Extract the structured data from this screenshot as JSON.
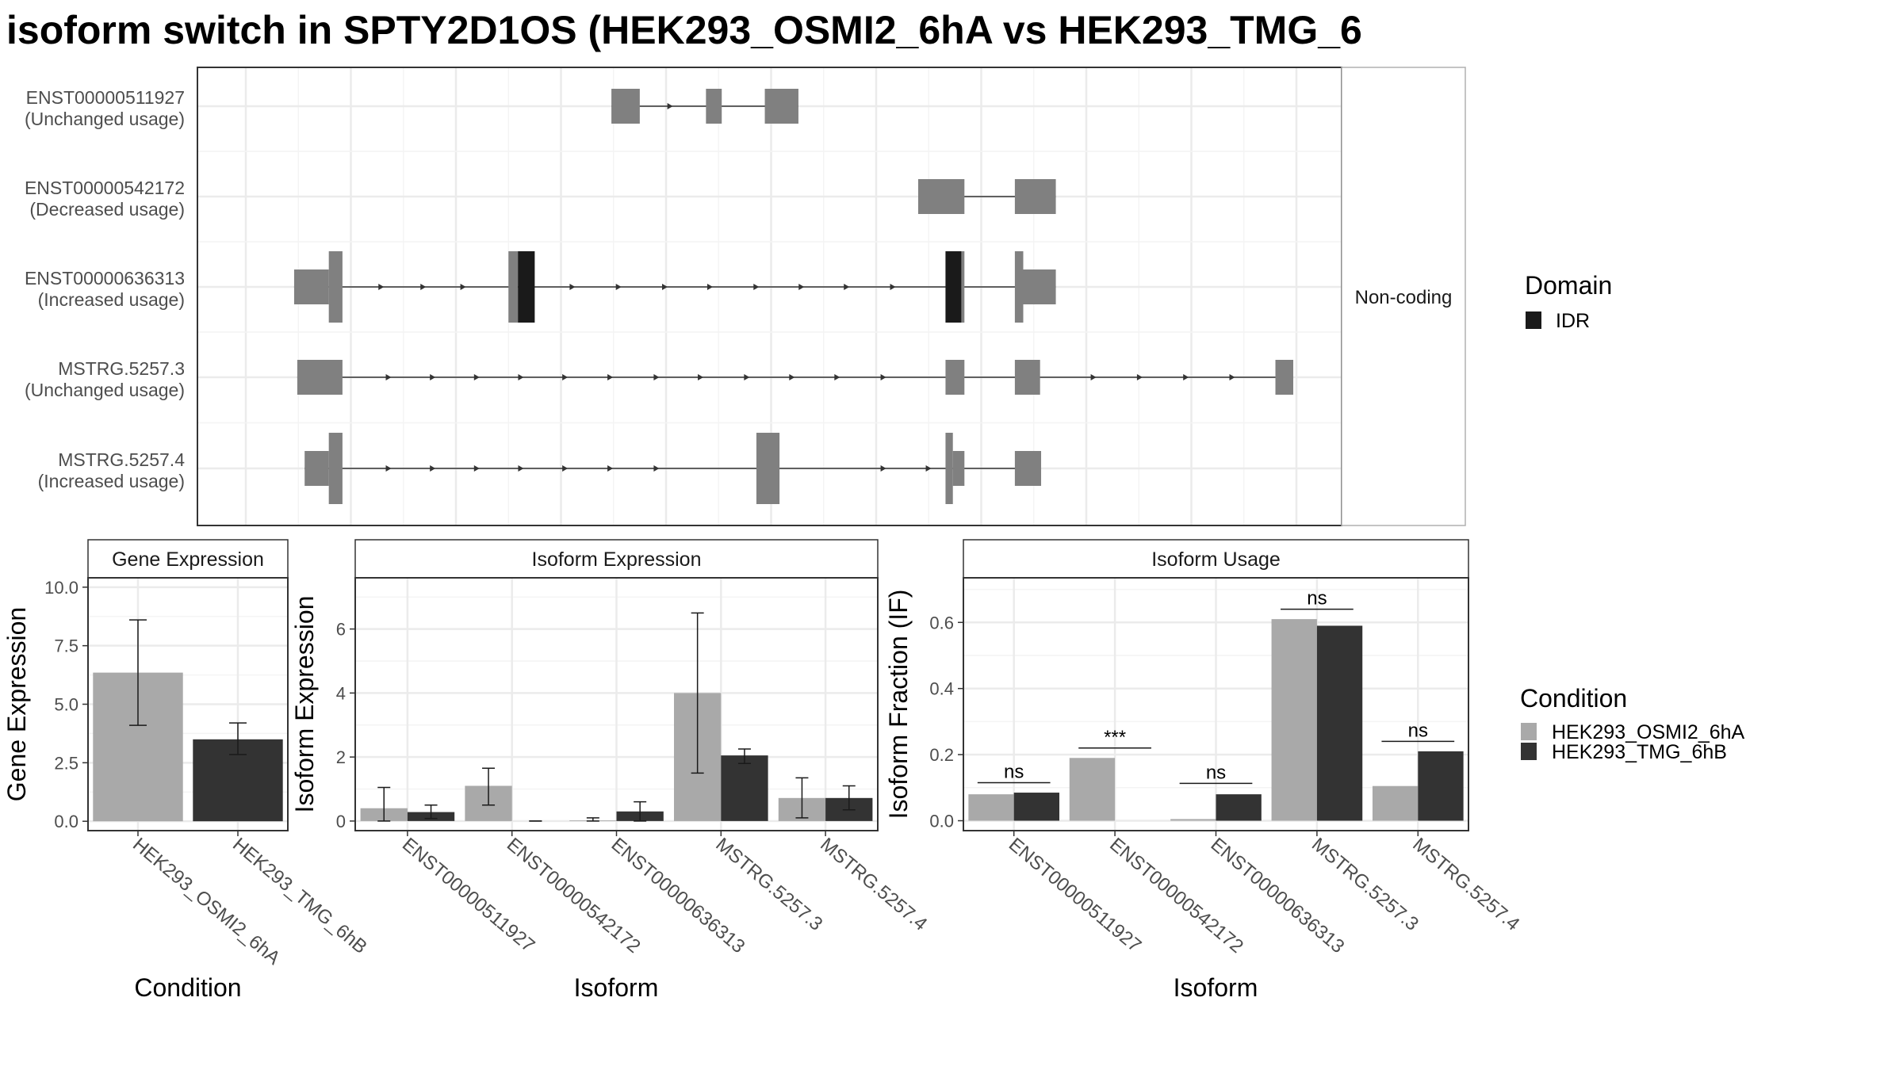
{
  "title": "isoform switch in SPTY2D1OS (HEK293_OSMI2_6hA vs HEK293_TMG_6",
  "colors": {
    "exon": "#808080",
    "idr": "#1a1a1a",
    "condition_a": "#a9a9a9",
    "condition_b": "#333333",
    "grid_major": "#ebebeb",
    "grid_minor": "#f4f4f4",
    "panel_border": "#333333",
    "text": "#4d4d4d"
  },
  "structure": {
    "type": "gene-structure",
    "coding_label": "Non-coding",
    "isoforms": [
      {
        "id": "ENST00000511927",
        "usage": "(Unchanged usage)",
        "start": 0.348,
        "end": 0.526,
        "strand_arrows": [
          0.405
        ],
        "exons": [
          {
            "s": 0.348,
            "e": 0.375,
            "h": "utr"
          },
          {
            "s": 0.438,
            "e": 0.453,
            "h": "utr"
          },
          {
            "s": 0.494,
            "e": 0.526,
            "h": "utr"
          }
        ],
        "idr": []
      },
      {
        "id": "ENST00000542172",
        "usage": "(Decreased usage)",
        "start": 0.64,
        "end": 0.771,
        "strand_arrows": [],
        "exons": [
          {
            "s": 0.64,
            "e": 0.684,
            "h": "utr"
          },
          {
            "s": 0.732,
            "e": 0.771,
            "h": "utr"
          }
        ],
        "idr": []
      },
      {
        "id": "ENST00000636313",
        "usage": "(Increased usage)",
        "start": 0.046,
        "end": 0.771,
        "strand_arrows": [
          0.13,
          0.17,
          0.208,
          0.312,
          0.356,
          0.4,
          0.443,
          0.487,
          0.53,
          0.573,
          0.617
        ],
        "exons": [
          {
            "s": 0.046,
            "e": 0.079,
            "h": "utr"
          },
          {
            "s": 0.079,
            "e": 0.092,
            "h": "cds"
          },
          {
            "s": 0.25,
            "e": 0.259,
            "h": "cds"
          },
          {
            "s": 0.666,
            "e": 0.684,
            "h": "cds"
          },
          {
            "s": 0.732,
            "e": 0.74,
            "h": "cds"
          },
          {
            "s": 0.74,
            "e": 0.771,
            "h": "utr"
          }
        ],
        "idr": [
          {
            "s": 0.259,
            "e": 0.275
          },
          {
            "s": 0.666,
            "e": 0.681
          }
        ]
      },
      {
        "id": "MSTRG.5257.3",
        "usage": "(Unchanged usage)",
        "start": 0.049,
        "end": 0.997,
        "strand_arrows": [
          0.137,
          0.179,
          0.221,
          0.263,
          0.305,
          0.348,
          0.392,
          0.434,
          0.478,
          0.521,
          0.564,
          0.608,
          0.808,
          0.852,
          0.896,
          0.94
        ],
        "exons": [
          {
            "s": 0.049,
            "e": 0.092,
            "h": "utr"
          },
          {
            "s": 0.666,
            "e": 0.684,
            "h": "utr"
          },
          {
            "s": 0.732,
            "e": 0.756,
            "h": "utr"
          },
          {
            "s": 0.98,
            "e": 0.997,
            "h": "utr"
          }
        ],
        "idr": []
      },
      {
        "id": "MSTRG.5257.4",
        "usage": "(Increased usage)",
        "start": 0.056,
        "end": 0.757,
        "strand_arrows": [
          0.137,
          0.179,
          0.221,
          0.263,
          0.305,
          0.348,
          0.392,
          0.608,
          0.651
        ],
        "exons": [
          {
            "s": 0.056,
            "e": 0.079,
            "h": "utr"
          },
          {
            "s": 0.079,
            "e": 0.092,
            "h": "cds"
          },
          {
            "s": 0.486,
            "e": 0.508,
            "h": "cds"
          },
          {
            "s": 0.666,
            "e": 0.673,
            "h": "cds"
          },
          {
            "s": 0.673,
            "e": 0.684,
            "h": "utr"
          },
          {
            "s": 0.732,
            "e": 0.757,
            "h": "utr"
          }
        ],
        "idr": []
      }
    ]
  },
  "legend_domain": {
    "title": "Domain",
    "items": [
      {
        "label": "IDR"
      }
    ]
  },
  "legend_condition": {
    "title": "Condition",
    "items": [
      {
        "label": "HEK293_OSMI2_6hA"
      },
      {
        "label": "HEK293_TMG_6hB"
      }
    ]
  },
  "chart_data": [
    {
      "type": "bar",
      "title": "Gene Expression",
      "xlabel": "Condition",
      "ylabel": "Gene Expression",
      "ylim": [
        -0.4,
        10.4
      ],
      "yticks": [
        0.0,
        2.5,
        5.0,
        7.5,
        10.0
      ],
      "ytick_labels": [
        "0.0",
        "2.5",
        "5.0",
        "7.5",
        "10.0"
      ],
      "categories": [
        "HEK293_OSMI2_6hA",
        "HEK293_TMG_6hB"
      ],
      "values": [
        6.35,
        3.5
      ],
      "error_low": [
        4.1,
        2.85
      ],
      "error_high": [
        8.6,
        4.2
      ]
    },
    {
      "type": "bar",
      "title": "Isoform Expression",
      "xlabel": "Isoform",
      "ylabel": "Isoform Expression",
      "ylim": [
        -0.3,
        7.6
      ],
      "yticks": [
        0,
        2,
        4,
        6
      ],
      "ytick_labels": [
        "0",
        "2",
        "4",
        "6"
      ],
      "categories": [
        "ENST00000511927",
        "ENST00000542172",
        "ENST00000636313",
        "MSTRG.5257.3",
        "MSTRG.5257.4"
      ],
      "series": [
        {
          "name": "HEK293_OSMI2_6hA",
          "values": [
            0.4,
            1.1,
            0.02,
            4.0,
            0.72
          ],
          "err_low": [
            0.0,
            0.5,
            0.0,
            1.5,
            0.1
          ],
          "err_high": [
            1.05,
            1.65,
            0.1,
            6.5,
            1.35
          ]
        },
        {
          "name": "HEK293_TMG_6hB",
          "values": [
            0.28,
            0.0,
            0.3,
            2.05,
            0.72
          ],
          "err_low": [
            0.08,
            0.0,
            0.0,
            1.8,
            0.35
          ],
          "err_high": [
            0.5,
            0.0,
            0.6,
            2.25,
            1.1
          ]
        }
      ]
    },
    {
      "type": "bar",
      "title": "Isoform Usage",
      "xlabel": "Isoform",
      "ylabel": "Isoform Fraction (IF)",
      "ylim": [
        -0.03,
        0.735
      ],
      "yticks": [
        0.0,
        0.2,
        0.4,
        0.6
      ],
      "ytick_labels": [
        "0.0",
        "0.2",
        "0.4",
        "0.6"
      ],
      "categories": [
        "ENST00000511927",
        "ENST00000542172",
        "ENST00000636313",
        "MSTRG.5257.3",
        "MSTRG.5257.4"
      ],
      "series": [
        {
          "name": "HEK293_OSMI2_6hA",
          "values": [
            0.08,
            0.19,
            0.005,
            0.61,
            0.105
          ]
        },
        {
          "name": "HEK293_TMG_6hB",
          "values": [
            0.085,
            0.0,
            0.08,
            0.59,
            0.21
          ]
        }
      ],
      "significance": [
        "ns",
        "***",
        "ns",
        "ns",
        "ns"
      ],
      "sig_level": [
        0.115,
        0.22,
        0.113,
        0.64,
        0.24
      ]
    }
  ]
}
